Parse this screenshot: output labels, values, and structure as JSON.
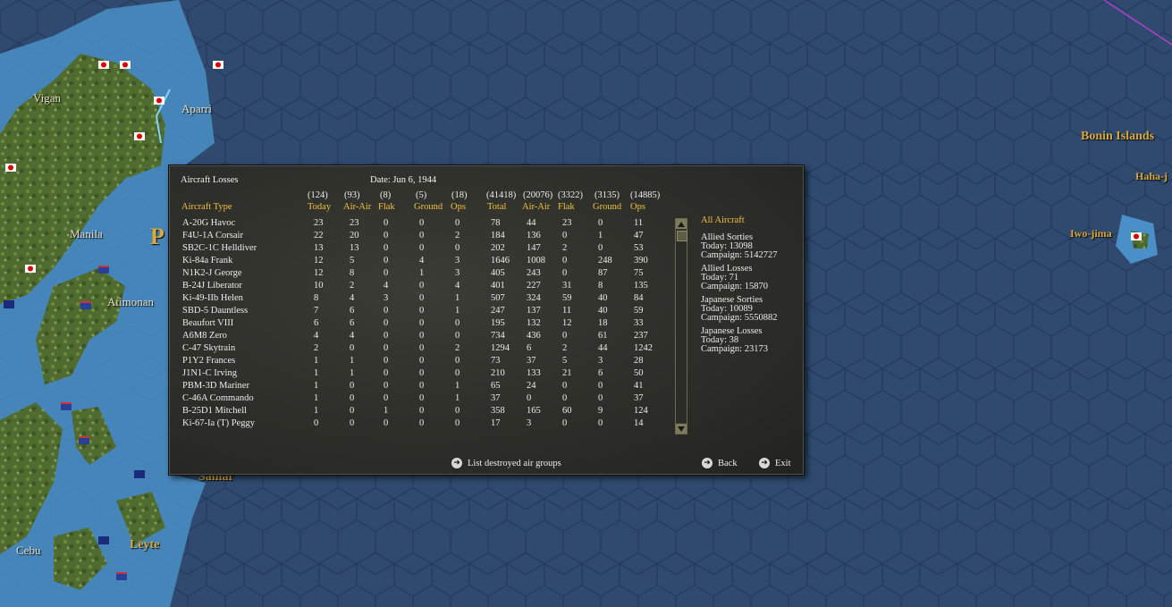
{
  "map": {
    "labels": {
      "vigan": "Vigan",
      "aparri": "Aparri",
      "manila": "Manila",
      "atimonan": "Atimonan",
      "cebu": "Cebu",
      "leyte": "Leyte",
      "samar": "Samar",
      "bonin": "Bonin Islands",
      "haha": "Haha-j",
      "iwojima": "Iwo-jima",
      "p_letter": "P"
    }
  },
  "dialog": {
    "title": "Aircraft Losses",
    "date": "Date: Jun 6, 1944",
    "column_header": "Aircraft Type",
    "today_headers": [
      {
        "total": "(124)",
        "label": "Today"
      },
      {
        "total": "(93)",
        "label": "Air-Air"
      },
      {
        "total": "(8)",
        "label": "Flak"
      },
      {
        "total": "(5)",
        "label": "Ground"
      },
      {
        "total": "(18)",
        "label": "Ops"
      }
    ],
    "campaign_headers": [
      {
        "total": "(41418)",
        "label": "Total"
      },
      {
        "total": "(20076)",
        "label": "Air-Air"
      },
      {
        "total": "(3322)",
        "label": "Flak"
      },
      {
        "total": "(3135)",
        "label": "Ground"
      },
      {
        "total": "(14885)",
        "label": "Ops"
      }
    ],
    "rows": [
      {
        "type": "A-20G Havoc",
        "v": [
          "23",
          "23",
          "0",
          "0",
          "0",
          "78",
          "44",
          "23",
          "0",
          "11"
        ]
      },
      {
        "type": "F4U-1A Corsair",
        "v": [
          "22",
          "20",
          "0",
          "0",
          "2",
          "184",
          "136",
          "0",
          "1",
          "47"
        ]
      },
      {
        "type": "SB2C-1C Helldiver",
        "v": [
          "13",
          "13",
          "0",
          "0",
          "0",
          "202",
          "147",
          "2",
          "0",
          "53"
        ]
      },
      {
        "type": "Ki-84a Frank",
        "v": [
          "12",
          "5",
          "0",
          "4",
          "3",
          "1646",
          "1008",
          "0",
          "248",
          "390"
        ]
      },
      {
        "type": "N1K2-J George",
        "v": [
          "12",
          "8",
          "0",
          "1",
          "3",
          "405",
          "243",
          "0",
          "87",
          "75"
        ]
      },
      {
        "type": "B-24J Liberator",
        "v": [
          "10",
          "2",
          "4",
          "0",
          "4",
          "401",
          "227",
          "31",
          "8",
          "135"
        ]
      },
      {
        "type": "Ki-49-IIb Helen",
        "v": [
          "8",
          "4",
          "3",
          "0",
          "1",
          "507",
          "324",
          "59",
          "40",
          "84"
        ]
      },
      {
        "type": "SBD-5 Dauntless",
        "v": [
          "7",
          "6",
          "0",
          "0",
          "1",
          "247",
          "137",
          "11",
          "40",
          "59"
        ]
      },
      {
        "type": "Beaufort VIII",
        "v": [
          "6",
          "6",
          "0",
          "0",
          "0",
          "195",
          "132",
          "12",
          "18",
          "33"
        ]
      },
      {
        "type": "A6M8 Zero",
        "v": [
          "4",
          "4",
          "0",
          "0",
          "0",
          "734",
          "436",
          "0",
          "61",
          "237"
        ]
      },
      {
        "type": "C-47 Skytrain",
        "v": [
          "2",
          "0",
          "0",
          "0",
          "2",
          "1294",
          "6",
          "2",
          "44",
          "1242"
        ]
      },
      {
        "type": "P1Y2 Frances",
        "v": [
          "1",
          "1",
          "0",
          "0",
          "0",
          "73",
          "37",
          "5",
          "3",
          "28"
        ]
      },
      {
        "type": "J1N1-C Irving",
        "v": [
          "1",
          "1",
          "0",
          "0",
          "0",
          "210",
          "133",
          "21",
          "6",
          "50"
        ]
      },
      {
        "type": "PBM-3D Mariner",
        "v": [
          "1",
          "0",
          "0",
          "0",
          "1",
          "65",
          "24",
          "0",
          "0",
          "41"
        ]
      },
      {
        "type": "C-46A Commando",
        "v": [
          "1",
          "0",
          "0",
          "0",
          "1",
          "37",
          "0",
          "0",
          "0",
          "37"
        ]
      },
      {
        "type": "B-25D1 Mitchell",
        "v": [
          "1",
          "0",
          "1",
          "0",
          "0",
          "358",
          "165",
          "60",
          "9",
          "124"
        ]
      },
      {
        "type": "Ki-67-Ia (T) Peggy",
        "v": [
          "0",
          "0",
          "0",
          "0",
          "0",
          "17",
          "3",
          "0",
          "0",
          "14"
        ]
      }
    ],
    "summary": {
      "heading": "All Aircraft",
      "allied_sorties": {
        "label": "Allied Sorties",
        "today": "Today:   13098",
        "campaign": "Campaign: 5142727"
      },
      "allied_losses": {
        "label": "Allied Losses",
        "today": "Today:   71",
        "campaign": "Campaign: 15870"
      },
      "japanese_sorties": {
        "label": "Japanese Sorties",
        "today": "Today:   10089",
        "campaign": "Campaign: 5550882"
      },
      "japanese_losses": {
        "label": "Japanese Losses",
        "today": "Today:   38",
        "campaign": "Campaign: 23173"
      }
    },
    "buttons": {
      "list_destroyed": "List destroyed air groups",
      "back": "Back",
      "exit": "Exit"
    },
    "colors": {
      "header": "#f0c040",
      "text": "#ececec",
      "panel": "#33332e"
    },
    "icons": {
      "button": "arrow-right-circle-icon",
      "scroll_up": "triangle-up-icon",
      "scroll_down": "triangle-down-icon"
    }
  }
}
